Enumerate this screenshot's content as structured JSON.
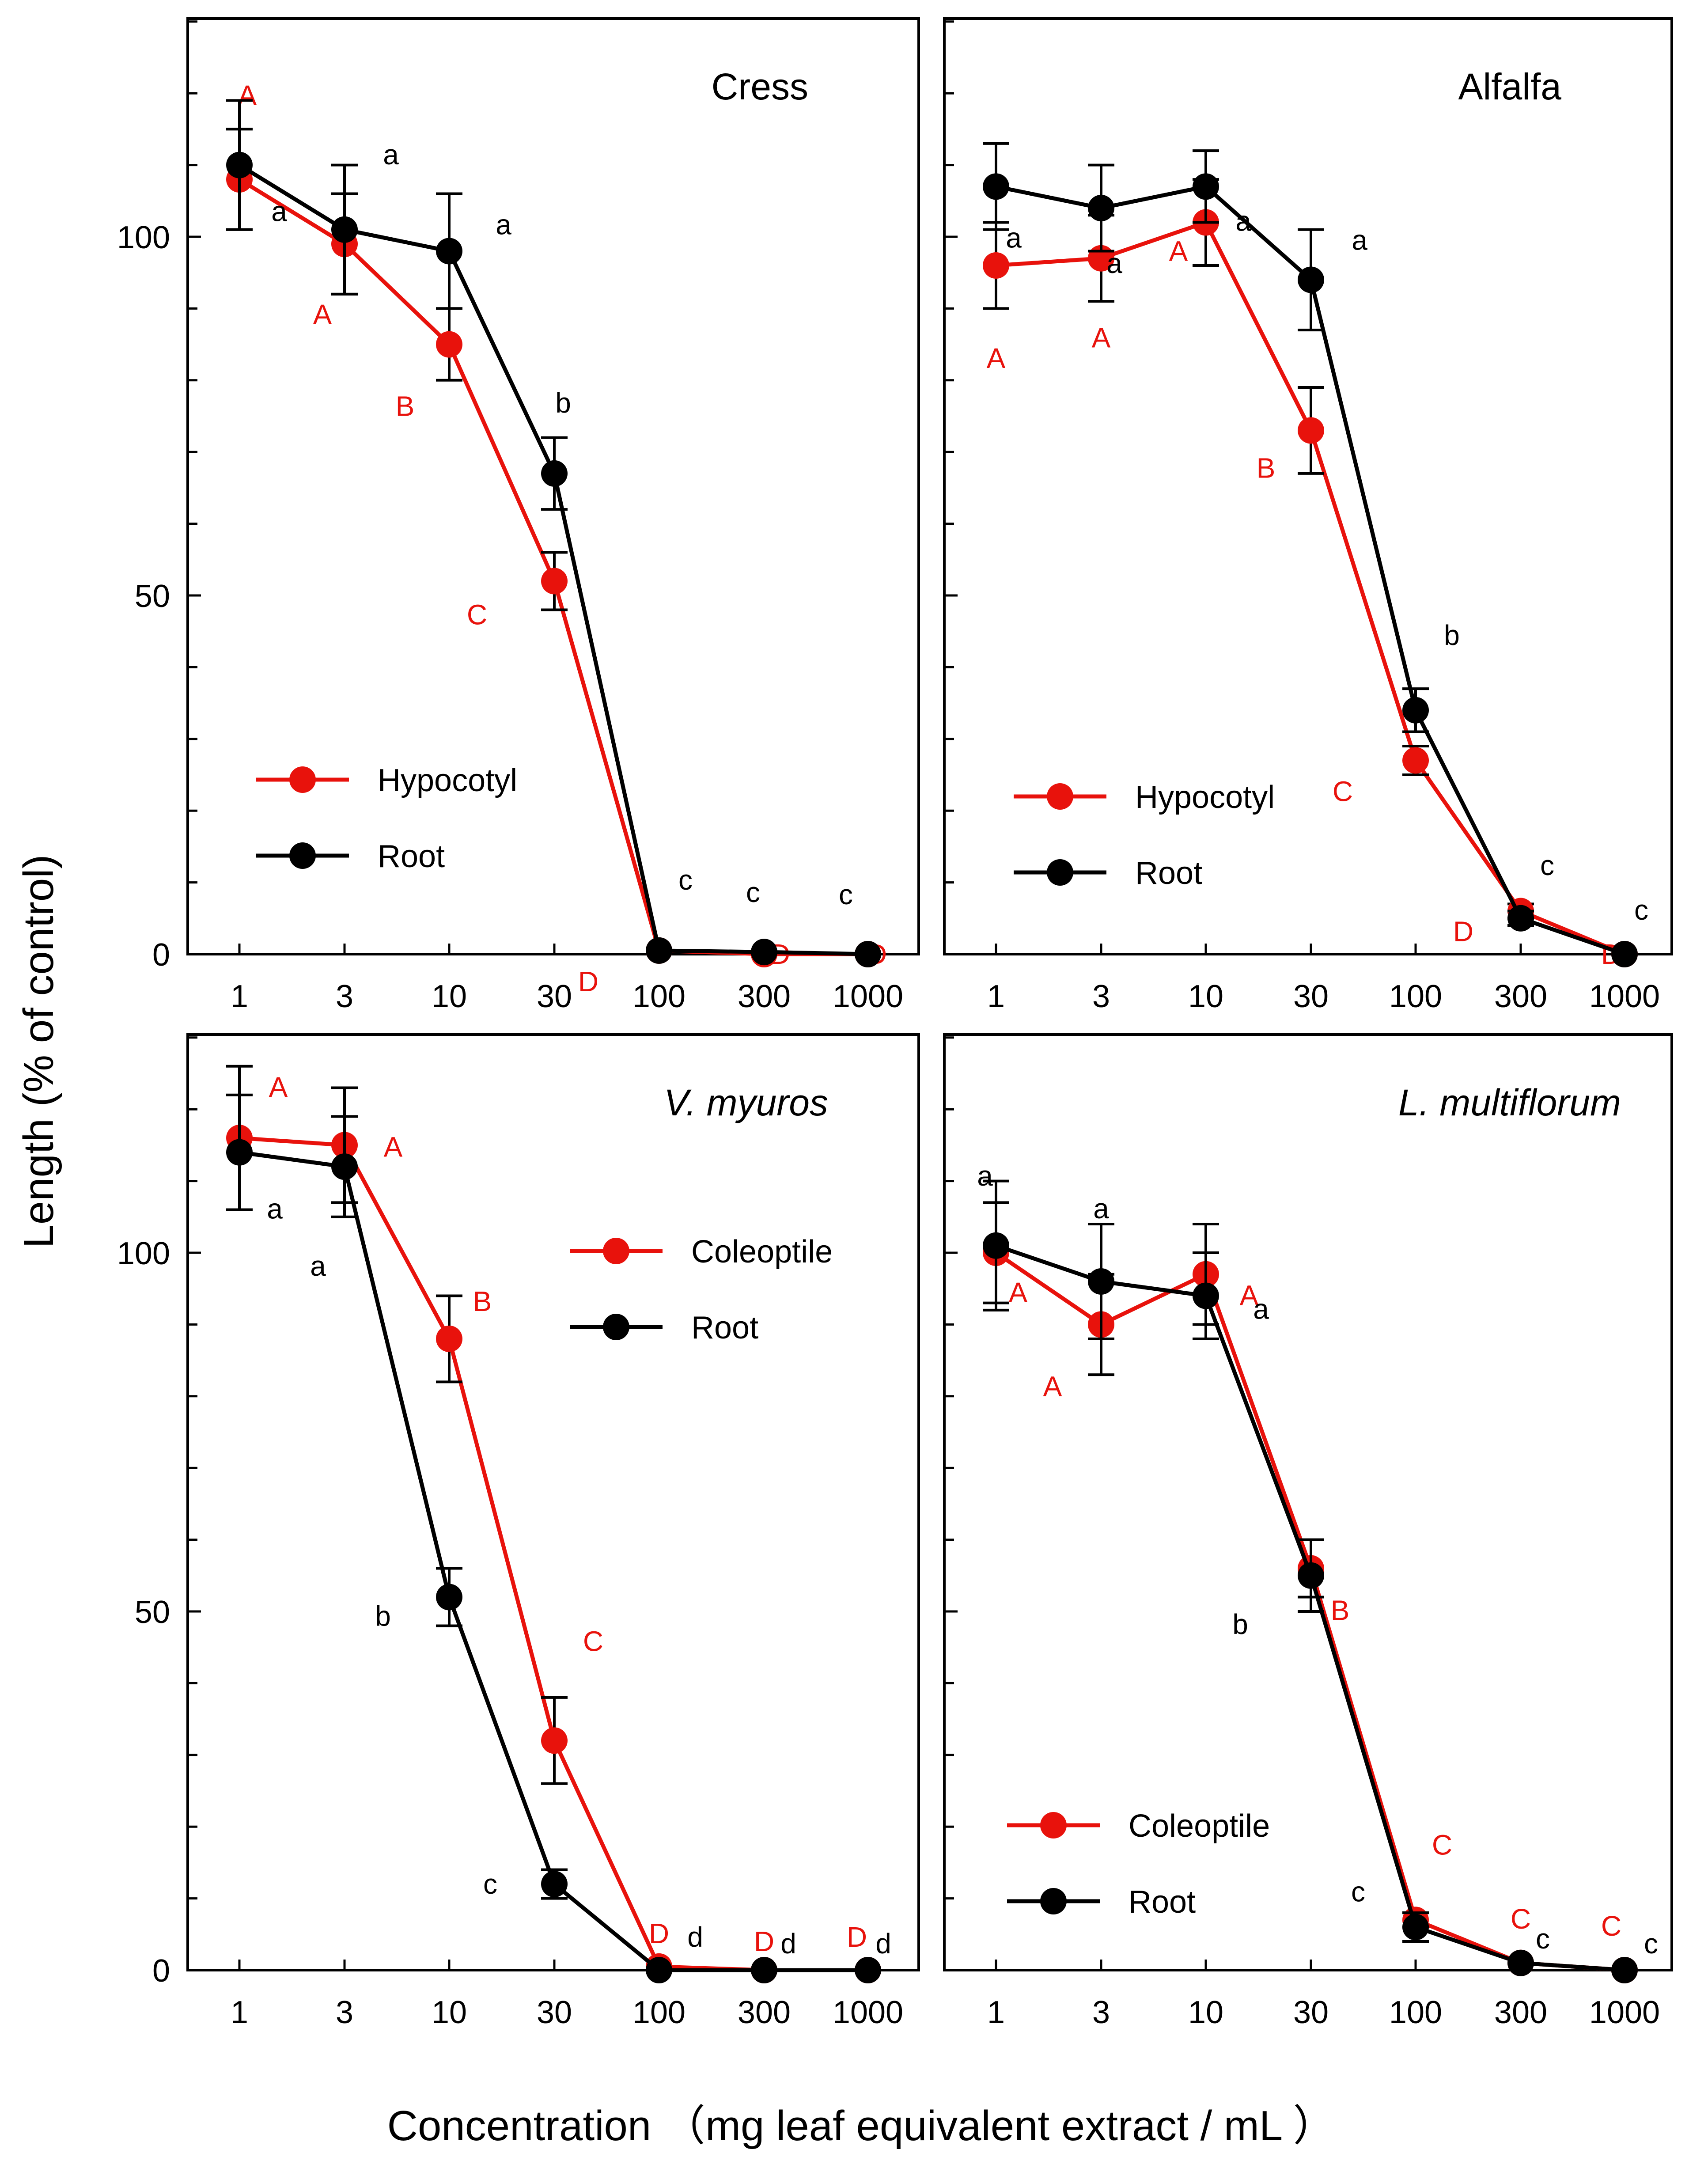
{
  "figure": {
    "ylabel": "Length  (% of control)",
    "xlabel": "Concentration （mg leaf equivalent extract / mL ）"
  },
  "colors": {
    "red": "#e8120c",
    "black": "#000000"
  },
  "chart_data": [
    {
      "type": "line",
      "title": "Cress",
      "title_italic": false,
      "x_scale": "log",
      "categories": [
        "1",
        "3",
        "10",
        "30",
        "100",
        "300",
        "1000"
      ],
      "x": [
        1,
        3,
        10,
        30,
        100,
        300,
        1000
      ],
      "ylim": [
        0,
        130
      ],
      "yticks": [
        0,
        50,
        100
      ],
      "legend_position": "bottom-left",
      "series": [
        {
          "name": "Hypocotyl",
          "color": "#e8120c",
          "values": [
            108,
            99,
            85,
            52,
            0.5,
            0,
            0
          ],
          "errors": [
            7,
            7,
            5,
            4,
            0,
            0,
            0
          ],
          "letters": [
            "A",
            "A",
            "B",
            "C",
            "D",
            "D",
            "D"
          ]
        },
        {
          "name": "Root",
          "color": "#000000",
          "values": [
            110,
            101,
            98,
            67,
            0.5,
            0.3,
            0
          ],
          "errors": [
            9,
            9,
            8,
            5,
            0,
            0,
            0
          ],
          "letters": [
            "a",
            "a",
            "a",
            "b",
            "c",
            "c",
            "c"
          ]
        }
      ]
    },
    {
      "type": "line",
      "title": "Alfalfa",
      "title_italic": false,
      "x_scale": "log",
      "categories": [
        "1",
        "3",
        "10",
        "30",
        "100",
        "300",
        "1000"
      ],
      "x": [
        1,
        3,
        10,
        30,
        100,
        300,
        1000
      ],
      "ylim": [
        0,
        130
      ],
      "yticks": [
        0,
        50,
        100
      ],
      "legend_position": "bottom-left",
      "series": [
        {
          "name": "Hypocotyl",
          "color": "#e8120c",
          "values": [
            96,
            97,
            102,
            73,
            27,
            6,
            0
          ],
          "errors": [
            6,
            6,
            6,
            6,
            2,
            1,
            0
          ],
          "letters": [
            "A",
            "A",
            "A",
            "B",
            "C",
            "D",
            "D"
          ]
        },
        {
          "name": "Root",
          "color": "#000000",
          "values": [
            107,
            104,
            107,
            94,
            34,
            5,
            0
          ],
          "errors": [
            6,
            6,
            5,
            7,
            3,
            1,
            0
          ],
          "letters": [
            "a",
            "a",
            "a",
            "a",
            "b",
            "c",
            "c"
          ]
        }
      ]
    },
    {
      "type": "line",
      "title": "V. myuros",
      "title_italic": true,
      "x_scale": "log",
      "categories": [
        "1",
        "3",
        "10",
        "30",
        "100",
        "300",
        "1000"
      ],
      "x": [
        1,
        3,
        10,
        30,
        100,
        300,
        1000
      ],
      "ylim": [
        0,
        130
      ],
      "yticks": [
        0,
        50,
        100
      ],
      "legend_position": "top-right",
      "series": [
        {
          "name": "Coleoptile",
          "color": "#e8120c",
          "values": [
            116,
            115,
            88,
            32,
            0.5,
            0,
            0
          ],
          "errors": [
            10,
            8,
            6,
            6,
            0,
            0,
            0
          ],
          "letters": [
            "A",
            "A",
            "B",
            "C",
            "D",
            "D",
            "D"
          ]
        },
        {
          "name": "Root",
          "color": "#000000",
          "values": [
            114,
            112,
            52,
            12,
            0,
            0,
            0
          ],
          "errors": [
            8,
            7,
            4,
            2,
            0,
            0,
            0
          ],
          "letters": [
            "a",
            "a",
            "b",
            "c",
            "d",
            "d",
            "d"
          ]
        }
      ]
    },
    {
      "type": "line",
      "title": "L. multiflorum",
      "title_italic": true,
      "x_scale": "log",
      "categories": [
        "1",
        "3",
        "10",
        "30",
        "100",
        "300",
        "1000"
      ],
      "x": [
        1,
        3,
        10,
        30,
        100,
        300,
        1000
      ],
      "ylim": [
        0,
        130
      ],
      "yticks": [
        0,
        50,
        100
      ],
      "legend_position": "bottom-left",
      "series": [
        {
          "name": "Coleoptile",
          "color": "#e8120c",
          "values": [
            100,
            90,
            97,
            56,
            7,
            1,
            0
          ],
          "errors": [
            7,
            7,
            7,
            4,
            1,
            0,
            0
          ],
          "letters": [
            "A",
            "A",
            "A",
            "B",
            "C",
            "C",
            "C"
          ]
        },
        {
          "name": "Root",
          "color": "#000000",
          "values": [
            101,
            96,
            94,
            55,
            6,
            1,
            0
          ],
          "errors": [
            9,
            8,
            6,
            5,
            2,
            0,
            0
          ],
          "letters": [
            "a",
            "a",
            "a",
            "b",
            "c",
            "c",
            "c"
          ]
        }
      ]
    }
  ]
}
